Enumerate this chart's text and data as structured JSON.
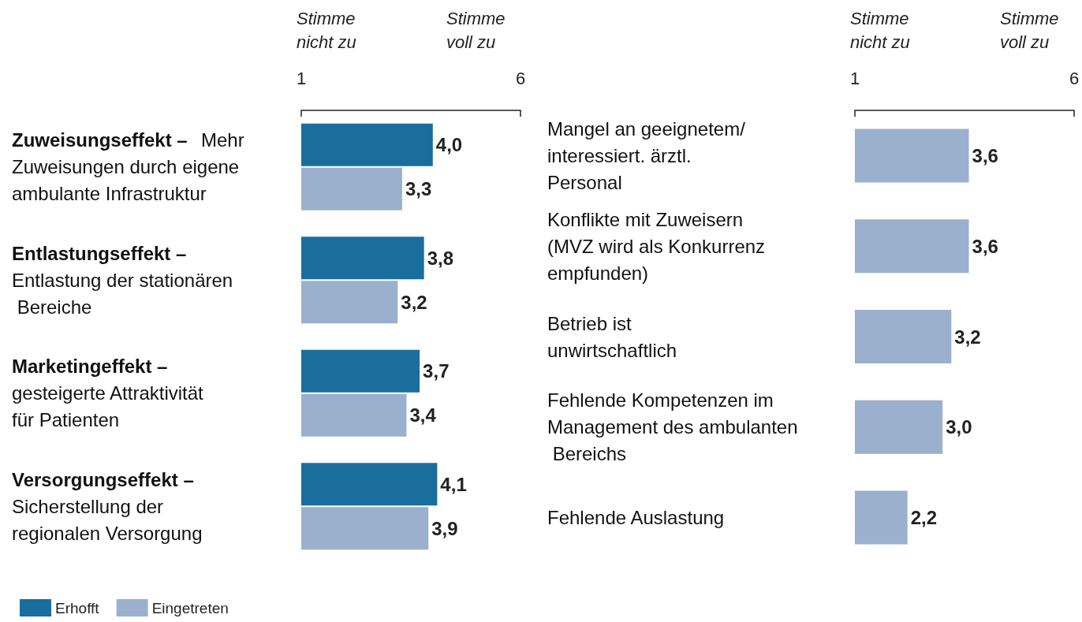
{
  "chart_data": [
    {
      "type": "bar",
      "orientation": "horizontal",
      "categories": [
        "Zuweisungseffekt – Mehr Zuweisungen durch eigene ambulante Infrastruktur",
        "Entlastungseffekt – Entlastung der stationären Bereiche",
        "Marketingeffekt – gesteigerte Attraktivität für Patienten",
        "Versorgungseffekt – Sicherstellung der regionalen Versorgung"
      ],
      "series": [
        {
          "name": "Erhofft",
          "color": "#1a6e9e",
          "values": [
            4.0,
            3.8,
            3.7,
            4.1
          ],
          "value_labels": [
            "4,0",
            "3,8",
            "3,7",
            "4,1"
          ]
        },
        {
          "name": "Eingetreten",
          "color": "#9bb0cc",
          "values": [
            3.3,
            3.2,
            3.4,
            3.9
          ],
          "value_labels": [
            "3,3",
            "3,2",
            "3,4",
            "3,9"
          ]
        }
      ],
      "xlim": [
        1,
        6
      ],
      "xticks": [
        1,
        6
      ],
      "legend": "bottom left",
      "annotations": [
        "Stimme nicht zu",
        "Stimme voll zu"
      ]
    },
    {
      "type": "bar",
      "orientation": "horizontal",
      "categories": [
        "Mangel an geeignetem/ interessiert. ärztl. Personal",
        "Konflikte mit Zuweisern (MVZ wird als Konkurrenz empfunden)",
        "Betrieb ist unwirtschaftlich",
        "Fehlende Kompetenzen im Management des ambulanten Bereichs",
        "Fehlende Auslastung"
      ],
      "series": [
        {
          "color": "#9bb0cc",
          "values": [
            3.6,
            3.6,
            3.2,
            3.0,
            2.2
          ],
          "value_labels": [
            "3,6",
            "3,6",
            "3,2",
            "3,0",
            "2,2"
          ]
        }
      ],
      "xlim": [
        1,
        6
      ],
      "xticks": [
        1,
        6
      ],
      "annotations": [
        "Stimme nicht zu",
        "Stimme voll zu"
      ]
    }
  ]
}
